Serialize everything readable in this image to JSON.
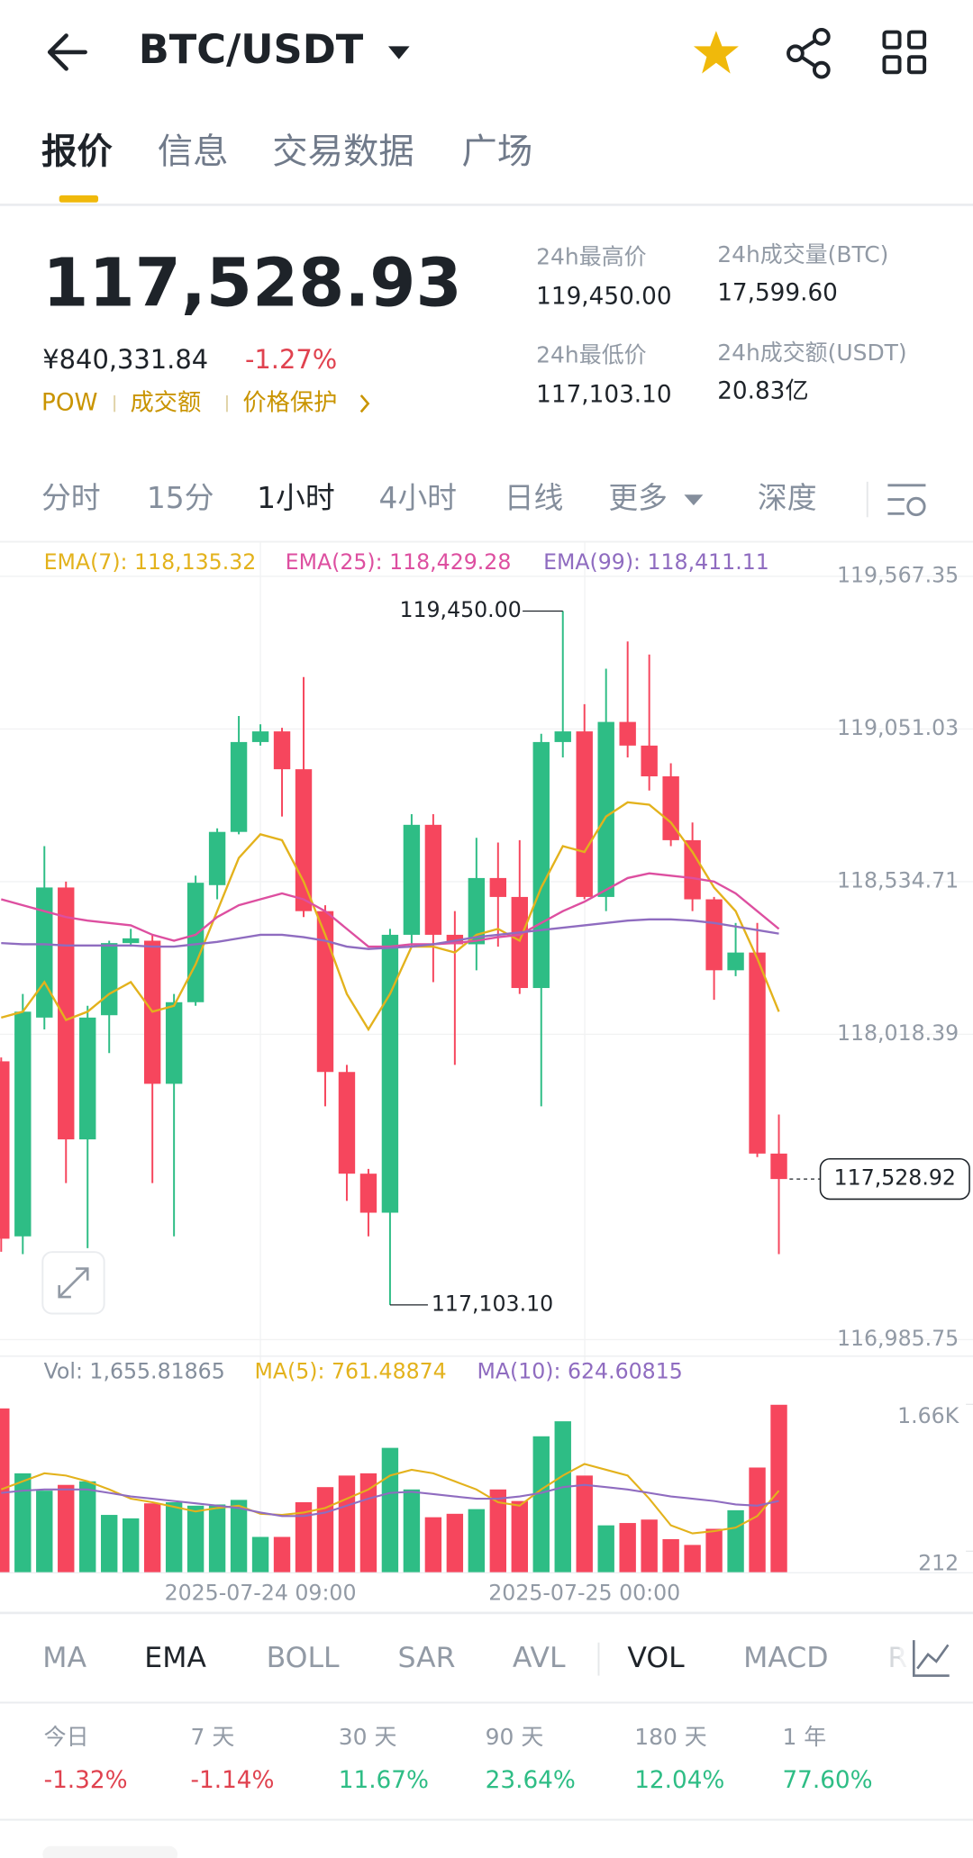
{
  "header": {
    "pair": "BTC/USDT"
  },
  "tabs": [
    "报价",
    "信息",
    "交易数据",
    "广场"
  ],
  "price": {
    "last": "117,528.93",
    "cny": "¥840,331.84",
    "change": "-1.27%",
    "tags": [
      "POW",
      "成交额",
      "价格保护"
    ]
  },
  "stats": [
    {
      "label": "24h最高价",
      "value": "119,450.00"
    },
    {
      "label": "24h成交量(BTC)",
      "value": "17,599.60"
    },
    {
      "label": "24h最低价",
      "value": "117,103.10"
    },
    {
      "label": "24h成交额(USDT)",
      "value": "20.83亿"
    }
  ],
  "intervals": [
    "分时",
    "15分",
    "1小时",
    "4小时",
    "日线",
    "更多",
    "深度"
  ],
  "chart_data": [
    {
      "type": "candlestick",
      "up_color": "#2ebd85",
      "down_color": "#f6465d",
      "ylim": [
        116985.75,
        119567.35
      ],
      "yticks": [
        {
          "value": 119567.35,
          "label": "119,567.35"
        },
        {
          "value": 119051.03,
          "label": "119,051.03"
        },
        {
          "value": 118534.71,
          "label": "118,534.71"
        },
        {
          "value": 118018.39,
          "label": "118,018.39"
        },
        {
          "value": 116985.75,
          "label": "116,985.75"
        }
      ],
      "grid": true,
      "high_label": "119,450.00",
      "low_label": "117,103.10",
      "last_label": "117,528.92",
      "candles": [
        {
          "open": 117927,
          "high": 117940,
          "low": 117283,
          "close": 117327
        },
        {
          "open": 117335,
          "high": 118155,
          "low": 117275,
          "close": 118095
        },
        {
          "open": 118075,
          "high": 118655,
          "low": 118035,
          "close": 118515
        },
        {
          "open": 118515,
          "high": 118535,
          "low": 117515,
          "close": 117663
        },
        {
          "open": 117663,
          "high": 118115,
          "low": 117295,
          "close": 118075
        },
        {
          "open": 118083,
          "high": 118335,
          "low": 117955,
          "close": 118327
        },
        {
          "open": 118327,
          "high": 118375,
          "low": 118315,
          "close": 118343
        },
        {
          "open": 118335,
          "high": 118355,
          "low": 117515,
          "close": 117851
        },
        {
          "open": 117851,
          "high": 118155,
          "low": 117335,
          "close": 118127
        },
        {
          "open": 118127,
          "high": 118555,
          "low": 118115,
          "close": 118531
        },
        {
          "open": 118523,
          "high": 118715,
          "low": 118475,
          "close": 118703
        },
        {
          "open": 118703,
          "high": 119095,
          "low": 118695,
          "close": 119007
        },
        {
          "open": 119007,
          "high": 119067,
          "low": 118995,
          "close": 119043
        },
        {
          "open": 119043,
          "high": 119055,
          "low": 118755,
          "close": 118915
        },
        {
          "open": 118915,
          "high": 119227,
          "low": 118415,
          "close": 118435
        },
        {
          "open": 118435,
          "high": 118455,
          "low": 117775,
          "close": 117891
        },
        {
          "open": 117891,
          "high": 117915,
          "low": 117455,
          "close": 117547
        },
        {
          "open": 117547,
          "high": 117563,
          "low": 117335,
          "close": 117415
        },
        {
          "open": 117415,
          "high": 118375,
          "low": 117103.1,
          "close": 118355
        },
        {
          "open": 118355,
          "high": 118763,
          "low": 118315,
          "close": 118727
        },
        {
          "open": 118727,
          "high": 118763,
          "low": 118195,
          "close": 118355
        },
        {
          "open": 118355,
          "high": 118435,
          "low": 117915,
          "close": 118323
        },
        {
          "open": 118323,
          "high": 118683,
          "low": 118235,
          "close": 118547
        },
        {
          "open": 118547,
          "high": 118667,
          "low": 118315,
          "close": 118483
        },
        {
          "open": 118483,
          "high": 118675,
          "low": 118155,
          "close": 118175
        },
        {
          "open": 118175,
          "high": 119035,
          "low": 117775,
          "close": 119007
        },
        {
          "open": 119007,
          "high": 119450.0,
          "low": 118955,
          "close": 119043
        },
        {
          "open": 119043,
          "high": 119135,
          "low": 118475,
          "close": 118483
        },
        {
          "open": 118483,
          "high": 119255,
          "low": 118435,
          "close": 119075
        },
        {
          "open": 119075,
          "high": 119347,
          "low": 118955,
          "close": 118995
        },
        {
          "open": 118995,
          "high": 119303,
          "low": 118843,
          "close": 118891
        },
        {
          "open": 118891,
          "high": 118935,
          "low": 118655,
          "close": 118675
        },
        {
          "open": 118675,
          "high": 118735,
          "low": 118435,
          "close": 118475
        },
        {
          "open": 118475,
          "high": 118483,
          "low": 118135,
          "close": 118235
        },
        {
          "open": 118235,
          "high": 118395,
          "low": 118215,
          "close": 118295
        },
        {
          "open": 118295,
          "high": 118395,
          "low": 117603,
          "close": 117615
        },
        {
          "open": 117615,
          "high": 117747,
          "low": 117275,
          "close": 117528.92
        }
      ],
      "series": [
        {
          "name": "EMA(7): 118,135.32",
          "color": "#e3b21c",
          "values": [
            118075,
            118095,
            118195,
            118067,
            118095,
            118155,
            118195,
            118095,
            118115,
            118255,
            118435,
            118615,
            118695,
            118675,
            118535,
            118355,
            118155,
            118035,
            118155,
            118315,
            118315,
            118295,
            118355,
            118375,
            118335,
            118515,
            118655,
            118635,
            118755,
            118803,
            118795,
            118735,
            118635,
            118515,
            118435,
            118275,
            118095
          ]
        },
        {
          "name": "EMA(25): 118,429.28",
          "color": "#dd4fa0",
          "values": [
            118475,
            118455,
            118435,
            118415,
            118403,
            118395,
            118387,
            118355,
            118335,
            118355,
            118415,
            118455,
            118475,
            118495,
            118475,
            118435,
            118375,
            118315,
            118315,
            118323,
            118323,
            118327,
            118335,
            118347,
            118355,
            118395,
            118435,
            118467,
            118507,
            118547,
            118563,
            118555,
            118547,
            118535,
            118495,
            118435,
            118375
          ]
        },
        {
          "name": "EMA(99): 118,411.11",
          "color": "#8f6cc0",
          "values": [
            118327,
            118323,
            118323,
            118319,
            118319,
            118319,
            118319,
            118315,
            118315,
            118323,
            118331,
            118343,
            118355,
            118355,
            118347,
            118335,
            118315,
            118307,
            118311,
            118315,
            118323,
            118335,
            118347,
            118355,
            118363,
            118371,
            118379,
            118387,
            118395,
            118403,
            118407,
            118407,
            118403,
            118395,
            118383,
            118371,
            118359
          ]
        }
      ]
    },
    {
      "type": "bar",
      "categories": [
        null,
        null,
        null,
        null,
        null,
        null,
        null,
        null,
        null,
        null,
        null,
        null,
        "2025-07-24 09:00",
        null,
        null,
        null,
        null,
        null,
        null,
        null,
        null,
        null,
        null,
        null,
        null,
        null,
        null,
        "2025-07-25 00:00",
        null,
        null,
        null,
        null,
        null,
        null,
        null,
        null,
        null
      ],
      "ylim": [
        0,
        1680
      ],
      "yticks": [
        {
          "value": 1660,
          "label": "1.66K"
        },
        212
      ],
      "series": [
        {
          "name": "Vol: 1,655.81865",
          "values": [
            1620,
            980,
            809,
            866,
            901,
            570,
            536,
            684,
            695,
            661,
            673,
            718,
            353,
            353,
            695,
            844,
            958,
            980,
            1231,
            821,
            547,
            581,
            627,
            821,
            707,
            1345,
            1493,
            958,
            467,
            490,
            524,
            331,
            274,
            433,
            616,
            1037,
            1655.81865
          ]
        },
        {
          "name": "MA(5): 761.48874",
          "color": "#e3b21c",
          "values": [
            821,
            901,
            980,
            958,
            901,
            821,
            730,
            695,
            650,
            604,
            638,
            661,
            581,
            570,
            593,
            638,
            730,
            821,
            958,
            1015,
            980,
            901,
            821,
            695,
            661,
            821,
            958,
            1072,
            1015,
            958,
            730,
            467,
            388,
            410,
            445,
            559,
            809
          ]
        },
        {
          "name": "MA(10): 624.60815",
          "color": "#8f6cc0",
          "values": [
            787,
            809,
            821,
            821,
            821,
            787,
            752,
            730,
            707,
            684,
            661,
            638,
            593,
            559,
            559,
            593,
            661,
            730,
            787,
            798,
            775,
            752,
            730,
            730,
            752,
            787,
            844,
            866,
            844,
            821,
            787,
            752,
            730,
            707,
            673,
            661,
            707
          ]
        }
      ]
    }
  ],
  "indicators": [
    "MA",
    "EMA",
    "BOLL",
    "SAR",
    "AVL",
    "VOL",
    "MACD",
    "R"
  ],
  "performance": [
    {
      "period": "今日",
      "change": "-1.32%"
    },
    {
      "period": "7 天",
      "change": "-1.14%"
    },
    {
      "period": "30 天",
      "change": "11.67%"
    },
    {
      "period": "90 天",
      "change": "23.64%"
    },
    {
      "period": "180 天",
      "change": "12.04%"
    },
    {
      "period": "1 年",
      "change": "77.60%"
    }
  ]
}
